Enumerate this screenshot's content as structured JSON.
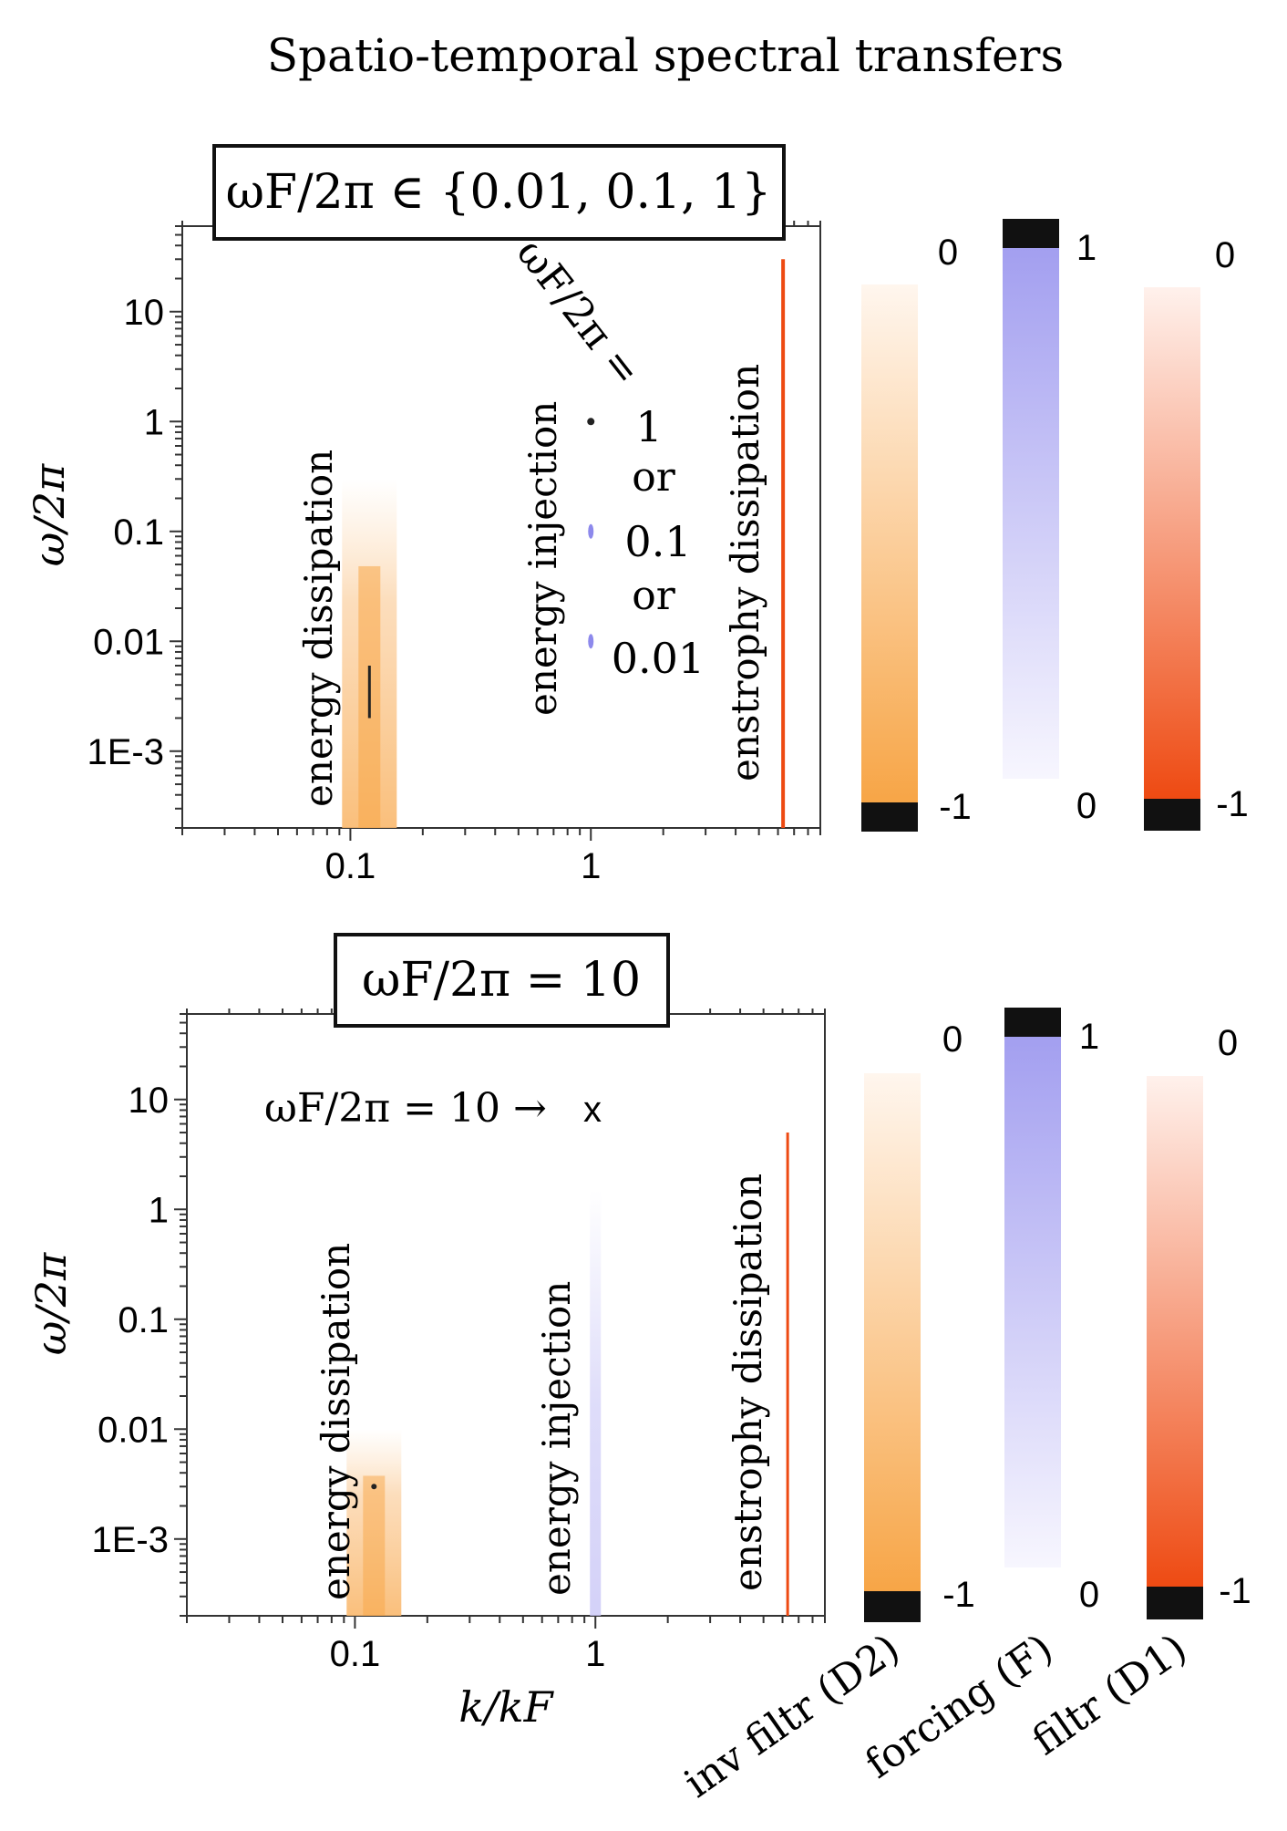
{
  "figure_title": "Spatio-temporal spectral transfers",
  "colorbar_labels": [
    "inv filtr (D2)",
    "forcing (F)",
    "filtr (D1)"
  ],
  "colors": {
    "orange_light": "#f9a84a",
    "orange_dark": "#ee4a12",
    "blue": "#9a96ee",
    "dark": "#111111"
  },
  "chart_data": [
    {
      "type": "heatmap",
      "panel": "top",
      "title": "ωF/2π ∈ {0.01, 0.1, 1}",
      "xlabel": "",
      "ylabel": "ω/2π",
      "xscale": "log",
      "yscale": "log",
      "xlim": [
        0.02,
        9
      ],
      "ylim": [
        0.0002,
        60
      ],
      "xticks": [
        {
          "value": 0.1,
          "label": "0.1"
        },
        {
          "value": 1,
          "label": "1"
        }
      ],
      "yticks": [
        {
          "value": 10,
          "label": "10"
        },
        {
          "value": 1,
          "label": "1"
        },
        {
          "value": 0.1,
          "label": "0.1"
        },
        {
          "value": 0.01,
          "label": "0.01"
        },
        {
          "value": 0.001,
          "label": "1E-3"
        }
      ],
      "bands": [
        {
          "name": "energy dissipation",
          "label": "energy dissipation",
          "k": 0.12,
          "omega_range": [
            0.0002,
            0.3
          ],
          "colormap": "inv filtr (D2)"
        },
        {
          "name": "energy injection",
          "label": "energy injection",
          "k": 1,
          "omega_points": [
            1,
            0.1,
            0.01
          ],
          "colormap": "forcing (F)"
        },
        {
          "name": "enstrophy dissipation",
          "label": "enstrophy dissipation",
          "k": 6.3,
          "omega_range": [
            0.0002,
            30
          ],
          "colormap": "filtr (D1)"
        }
      ],
      "annotation": {
        "header": "ωF/2π =",
        "values": [
          "1",
          "0.1",
          "0.01"
        ],
        "separator": "or"
      },
      "colorbars": [
        {
          "name": "inv filtr (D2)",
          "top_label": "0",
          "bottom_label": "-1"
        },
        {
          "name": "forcing (F)",
          "top_label": "1",
          "bottom_label": "0"
        },
        {
          "name": "filtr (D1)",
          "top_label": "0",
          "bottom_label": "-1"
        }
      ]
    },
    {
      "type": "heatmap",
      "panel": "bottom",
      "title": "ωF/2π = 10",
      "xlabel": "k/kF",
      "ylabel": "ω/2π",
      "xscale": "log",
      "yscale": "log",
      "xlim": [
        0.02,
        9
      ],
      "ylim": [
        0.0002,
        60
      ],
      "xticks": [
        {
          "value": 0.1,
          "label": "0.1"
        },
        {
          "value": 1,
          "label": "1"
        }
      ],
      "yticks": [
        {
          "value": 10,
          "label": "10"
        },
        {
          "value": 1,
          "label": "1"
        },
        {
          "value": 0.1,
          "label": "0.1"
        },
        {
          "value": 0.01,
          "label": "0.01"
        },
        {
          "value": 0.001,
          "label": "1E-3"
        }
      ],
      "bands": [
        {
          "name": "energy dissipation",
          "label": "energy dissipation",
          "k": 0.12,
          "omega_range": [
            0.0002,
            0.01
          ],
          "colormap": "inv filtr (D2)"
        },
        {
          "name": "energy injection",
          "label": "energy injection",
          "k": 1,
          "omega_range": [
            0.0002,
            1.5
          ],
          "colormap": "forcing (F)"
        },
        {
          "name": "enstrophy dissipation",
          "label": "enstrophy dissipation",
          "k": 6.3,
          "omega_range": [
            0.0002,
            5
          ],
          "colormap": "filtr (D1)"
        }
      ],
      "annotation": {
        "text": "ωF/2π = 10 →",
        "marker": "x"
      },
      "colorbars": [
        {
          "name": "inv filtr (D2)",
          "top_label": "0",
          "bottom_label": "-1"
        },
        {
          "name": "forcing (F)",
          "top_label": "1",
          "bottom_label": "0"
        },
        {
          "name": "filtr (D1)",
          "top_label": "0",
          "bottom_label": "-1"
        }
      ]
    }
  ]
}
